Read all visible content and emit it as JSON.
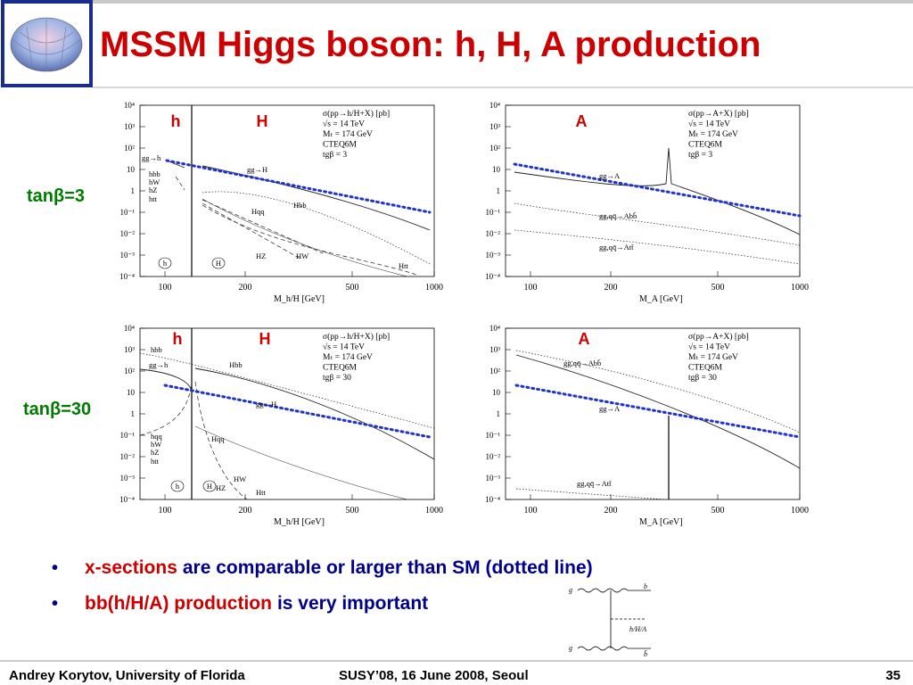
{
  "header": {
    "title": "MSSM Higgs boson: h, H, A production"
  },
  "row_labels": [
    "tanβ=3",
    "tanβ=30"
  ],
  "plots": [
    {
      "markers": [
        "h",
        "H"
      ],
      "legend": [
        "σ(pp→h/H+X) [pb]",
        "√s = 14 TeV",
        "Mₜ = 174 GeV",
        "CTEQ6M",
        "tgβ = 3"
      ],
      "x_label": "M_h/H [GeV]",
      "x_ticks": [
        "100",
        "200",
        "500",
        "1000"
      ],
      "y_ticks": [
        "10⁴",
        "10³",
        "10²",
        "10",
        "1",
        "10⁻¹",
        "10⁻²",
        "10⁻³",
        "10⁻⁴"
      ],
      "curve_labels": [
        "gg→h",
        "hbb",
        "hW",
        "hZ",
        "htt",
        "gg→H",
        "Hbb",
        "Hqq",
        "HZ",
        "HW",
        "Htt"
      ],
      "circled": [
        "h",
        "H"
      ]
    },
    {
      "markers": [
        "A"
      ],
      "legend": [
        "σ(pp→A+X) [pb]",
        "√s = 14 TeV",
        "Mₜ = 174 GeV",
        "CTEQ6M",
        "tgβ = 3"
      ],
      "x_label": "M_A [GeV]",
      "x_ticks": [
        "100",
        "200",
        "500",
        "1000"
      ],
      "y_ticks": [
        "10⁴",
        "10³",
        "10²",
        "10",
        "1",
        "10⁻¹",
        "10⁻²",
        "10⁻³",
        "10⁻⁴"
      ],
      "curve_labels": [
        "gg→A",
        "gg,qq̄→Abb̄",
        "gg,qq̄→Att̄"
      ],
      "circled": []
    },
    {
      "markers": [
        "h",
        "H"
      ],
      "legend": [
        "σ(pp→h/H+X) [pb]",
        "√s = 14 TeV",
        "Mₜ = 174 GeV",
        "CTEQ6M",
        "tgβ = 30"
      ],
      "x_label": "M_h/H [GeV]",
      "x_ticks": [
        "100",
        "200",
        "500",
        "1000"
      ],
      "y_ticks": [
        "10⁴",
        "10³",
        "10²",
        "10",
        "1",
        "10⁻¹",
        "10⁻²",
        "10⁻³",
        "10⁻⁴"
      ],
      "curve_labels": [
        "hbb",
        "gg→h",
        "Hbb",
        "gg→H",
        "hqq",
        "hW",
        "hZ",
        "htt",
        "Hqq",
        "HW",
        "HZ",
        "Htt"
      ],
      "circled": [
        "h",
        "H"
      ]
    },
    {
      "markers": [
        "A"
      ],
      "legend": [
        "σ(pp→A+X) [pb]",
        "√s = 14 TeV",
        "Mₜ = 174 GeV",
        "CTEQ6M",
        "tgβ = 30"
      ],
      "x_label": "M_A [GeV]",
      "x_ticks": [
        "100",
        "200",
        "500",
        "1000"
      ],
      "y_ticks": [
        "10⁴",
        "10³",
        "10²",
        "10",
        "1",
        "10⁻¹",
        "10⁻²",
        "10⁻³",
        "10⁻⁴"
      ],
      "curve_labels": [
        "gg,qq̄→Abb̄",
        "gg→A",
        "gg,qq̄→Att̄"
      ],
      "circled": []
    }
  ],
  "bullets": [
    {
      "highlight": "x-sections",
      "text": "are comparable or larger than SM (dotted line)"
    },
    {
      "highlight": "bb(h/H/A) production",
      "text": "is very important"
    }
  ],
  "diagram": {
    "labels": [
      "g",
      "b",
      "h/H/A",
      "g",
      "b̄"
    ]
  },
  "footer": {
    "author": "Andrey Korytov, University of Florida",
    "event": "SUSY’08, 16 June 2008, Seoul",
    "page": "35"
  }
}
